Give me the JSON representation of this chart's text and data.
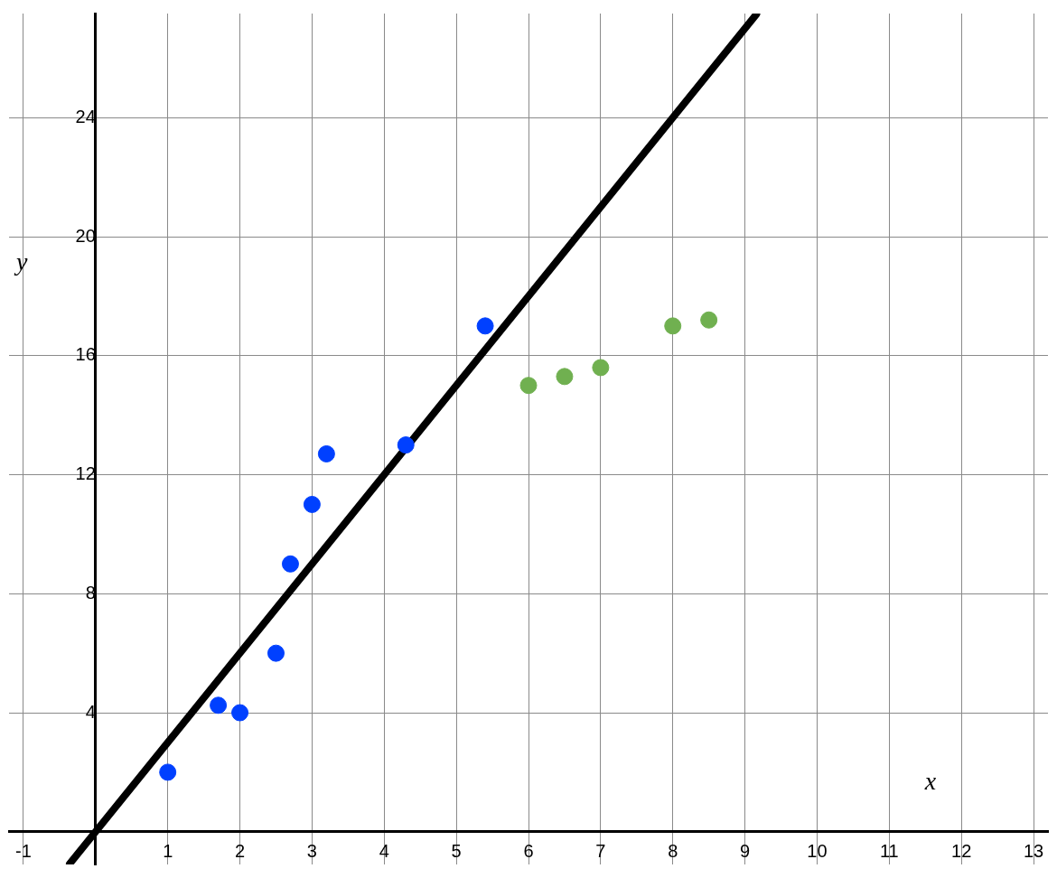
{
  "chart_data": {
    "type": "scatter",
    "xlabel": "x",
    "ylabel": "y",
    "xlim": [
      -1.2,
      13.2
    ],
    "ylim": [
      -1.1,
      27.5
    ],
    "xticks": [
      -1,
      {
        "value": 0,
        "label": null
      },
      1,
      2,
      3,
      4,
      5,
      6,
      7,
      8,
      9,
      10,
      11,
      12,
      13
    ],
    "yticks": [
      4,
      8,
      12,
      16,
      20,
      24
    ],
    "grid": true,
    "legend": false,
    "marker": "circle",
    "series": [
      {
        "color": "#0040ff",
        "x": [
          1,
          1.7,
          2,
          2.5,
          2.7,
          3,
          3.2,
          4.3,
          5.4
        ],
        "values": [
          2,
          4.25,
          4,
          6,
          9,
          11,
          12.7,
          13,
          17
        ]
      },
      {
        "color": "#70b050",
        "x": [
          6,
          6.5,
          7,
          8,
          8.5
        ],
        "values": [
          15,
          15.3,
          15.6,
          17,
          17.2
        ]
      },
      {
        "type": "line",
        "color": "#000000",
        "marker": "none",
        "line_style": "solid",
        "x": [
          -0.36,
          9.16
        ],
        "values": [
          -1.08,
          27.48
        ]
      }
    ]
  }
}
